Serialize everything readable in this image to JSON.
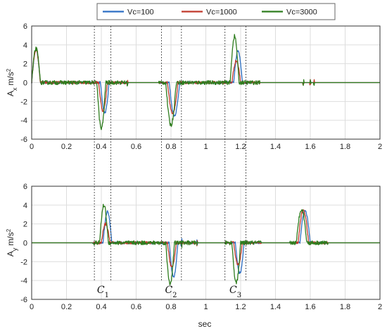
{
  "chart_data": {
    "type": "line",
    "x_label": "sec",
    "x_range": [
      0,
      2
    ],
    "x_ticks": [
      "0",
      "0.2",
      "0.4",
      "0.6",
      "0.8",
      "1",
      "1.2",
      "1.4",
      "1.6",
      "1.8",
      "2"
    ],
    "grid": true,
    "legend_position": "top",
    "series": [
      {
        "name": "Vc=100",
        "color": "#2d6fc4"
      },
      {
        "name": "Vc=1000",
        "color": "#c0392b"
      },
      {
        "name": "Vc=3000",
        "color": "#2e7d1e"
      }
    ],
    "markers": [
      0.36,
      0.455,
      0.745,
      0.86,
      1.11,
      1.23
    ],
    "annotations": [
      {
        "base": "C",
        "sub": "1",
        "x": 0.41
      },
      {
        "base": "C",
        "sub": "2",
        "x": 0.8
      },
      {
        "base": "C",
        "sub": "3",
        "x": 1.17
      }
    ],
    "panels": [
      {
        "id": "ax",
        "ylabel_base": "A",
        "ylabel_sub": "x",
        "ylabel_unit": "m/s",
        "ylabel_exp": "2",
        "y_range": [
          -6,
          6
        ],
        "y_ticks": [
          "6",
          "4",
          "2",
          "0",
          "-2",
          "-4",
          "-6"
        ],
        "events": [
          {
            "t": 0.0,
            "amps": [
              3.5,
              3.5,
              3.6
            ],
            "width": 0.05
          },
          {
            "t": 0.375,
            "amps": [
              -3.2,
              -3.0,
              -4.9
            ],
            "width": 0.05
          },
          {
            "t": 0.77,
            "amps": [
              -3.5,
              -3.3,
              -4.5
            ],
            "width": 0.06
          },
          {
            "t": 1.14,
            "amps": [
              3.4,
              2.3,
              4.9
            ],
            "width": 0.05
          }
        ],
        "spikes": [
          0.55,
          1.56,
          1.6,
          1.62
        ]
      },
      {
        "id": "ay",
        "ylabel_base": "A",
        "ylabel_sub": "y",
        "ylabel_unit": "m/s",
        "ylabel_exp": "2",
        "y_range": [
          -6,
          6
        ],
        "y_ticks": [
          "6",
          "4",
          "2",
          "0",
          "-2",
          "-4",
          "-6"
        ],
        "events": [
          {
            "t": 0.39,
            "amps": [
              3.3,
              2.0,
              4.0
            ],
            "width": 0.05
          },
          {
            "t": 0.77,
            "amps": [
              -3.6,
              -2.6,
              -4.3
            ],
            "width": 0.05
          },
          {
            "t": 1.15,
            "amps": [
              -3.2,
              -2.3,
              -4.2
            ],
            "width": 0.05
          },
          {
            "t": 1.52,
            "amps": [
              3.4,
              3.5,
              3.6
            ],
            "width": 0.06
          }
        ],
        "spikes": [
          0.86,
          0.95
        ]
      }
    ]
  }
}
